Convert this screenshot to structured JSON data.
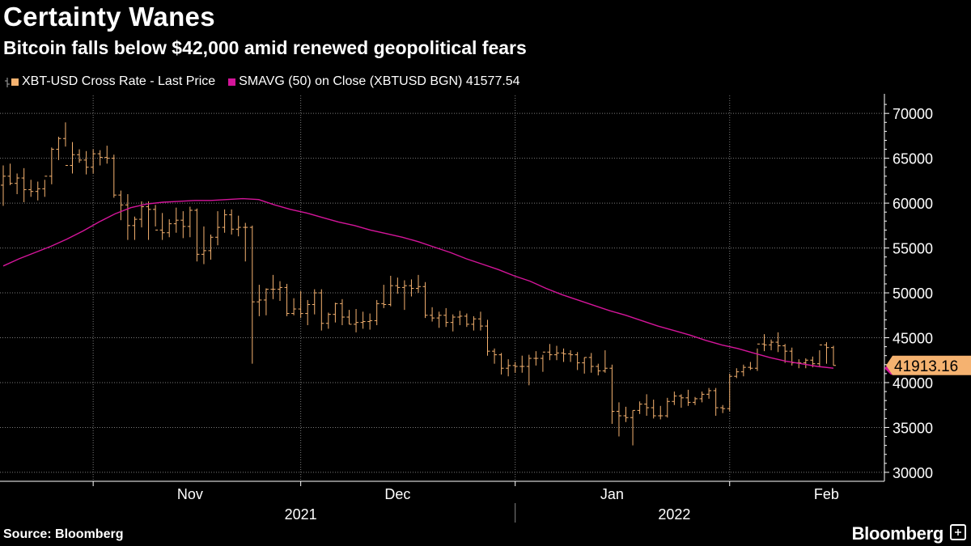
{
  "title": "Certainty Wanes",
  "subtitle": "Bitcoin falls below $42,000 amid renewed geopolitical fears",
  "source": "Source: Bloomberg",
  "brand": "Bloomberg",
  "colors": {
    "price": "#f5b270",
    "sma": "#d4159a",
    "grid": "#7a7a7a",
    "background": "#000000"
  },
  "chart_data": {
    "type": "line",
    "ylim": [
      29000,
      72000
    ],
    "yticks": [
      30000,
      35000,
      40000,
      45000,
      50000,
      55000,
      60000,
      65000,
      70000
    ],
    "ytick_labels": [
      "30000",
      "35000",
      "40000",
      "45000",
      "50000",
      "55000",
      "60000",
      "65000",
      "70000"
    ],
    "xlabels": [
      {
        "label": "Nov",
        "date": "2021-11-15"
      },
      {
        "label": "Dec",
        "date": "2021-12-15"
      },
      {
        "label": "Jan",
        "date": "2022-01-15"
      },
      {
        "label": "Feb",
        "date": "2022-02-15"
      }
    ],
    "year_labels": [
      {
        "label": "2021",
        "date": "2021-12-01"
      },
      {
        "label": "2022",
        "date": "2022-01-24"
      }
    ],
    "grid": true,
    "last_value_label": "41913.16",
    "series": [
      {
        "name": "XBT-USD Cross Rate - Last Price",
        "style": "ohlc",
        "start_date": "2021-10-19",
        "values": [
          [
            62000,
            64200,
            59700,
            63000
          ],
          [
            63000,
            64400,
            62000,
            62200
          ],
          [
            62200,
            63300,
            61000,
            62800
          ],
          [
            62800,
            63900,
            60100,
            61500
          ],
          [
            61500,
            62600,
            60700,
            61300
          ],
          [
            61300,
            62400,
            60300,
            61600
          ],
          [
            61600,
            62600,
            60700,
            63000
          ],
          [
            63000,
            66200,
            62100,
            66000
          ],
          [
            66000,
            67400,
            64800,
            67200
          ],
          [
            67200,
            69000,
            66300,
            64200
          ],
          [
            64200,
            66800,
            63300,
            65400
          ],
          [
            65400,
            66000,
            64500,
            64800
          ],
          [
            64800,
            65800,
            63200,
            64000
          ],
          [
            64000,
            66000,
            63300,
            65500
          ],
          [
            65500,
            65900,
            64200,
            65100
          ],
          [
            65100,
            66400,
            64400,
            65000
          ],
          [
            65000,
            65400,
            60600,
            60900
          ],
          [
            60900,
            61400,
            58100,
            59800
          ],
          [
            59800,
            61000,
            55900,
            57500
          ],
          [
            57500,
            58500,
            55900,
            58200
          ],
          [
            58200,
            60200,
            57300,
            59600
          ],
          [
            59600,
            60200,
            55900,
            59300
          ],
          [
            59300,
            59800,
            57400,
            57000
          ],
          [
            57000,
            58900,
            55900,
            56700
          ],
          [
            56700,
            58200,
            56200,
            57700
          ],
          [
            57700,
            59500,
            56700,
            58100
          ],
          [
            58100,
            59100,
            56100,
            57400
          ],
          [
            57400,
            59600,
            56200,
            59200
          ],
          [
            59200,
            59400,
            53500,
            54300
          ],
          [
            54300,
            57400,
            53200,
            54700
          ],
          [
            54700,
            56500,
            53700,
            56200
          ],
          [
            56200,
            59100,
            55300,
            57300
          ],
          [
            57300,
            59300,
            56700,
            58700
          ],
          [
            58700,
            59300,
            56500,
            57100
          ],
          [
            57100,
            58600,
            56300,
            57300
          ],
          [
            57300,
            57800,
            53500,
            57300
          ],
          [
            57300,
            57500,
            42100,
            49000
          ],
          [
            49000,
            50900,
            47400,
            49200
          ],
          [
            49200,
            50500,
            47500,
            50400
          ],
          [
            50400,
            52000,
            49300,
            50400
          ],
          [
            50400,
            51300,
            49100,
            50600
          ],
          [
            50600,
            51000,
            47400,
            47700
          ],
          [
            47700,
            49400,
            47500,
            48200
          ],
          [
            48200,
            50200,
            47200,
            47700
          ],
          [
            47700,
            49200,
            46400,
            48700
          ],
          [
            48700,
            50400,
            47600,
            50000
          ],
          [
            50000,
            50400,
            45800,
            46600
          ],
          [
            46600,
            47800,
            46000,
            47600
          ],
          [
            47600,
            48900,
            46700,
            48800
          ],
          [
            48800,
            49300,
            46400,
            47300
          ],
          [
            47300,
            48100,
            46500,
            46500
          ],
          [
            46500,
            48200,
            45600,
            46700
          ],
          [
            46700,
            47900,
            46000,
            46800
          ],
          [
            46800,
            47700,
            45900,
            46900
          ],
          [
            46900,
            49200,
            46400,
            48800
          ],
          [
            48800,
            50900,
            48300,
            48700
          ],
          [
            48700,
            51900,
            48500,
            50800
          ],
          [
            50800,
            51700,
            49900,
            50600
          ],
          [
            50600,
            51400,
            48100,
            50800
          ],
          [
            50800,
            51500,
            49600,
            50500
          ],
          [
            50500,
            52000,
            50000,
            50700
          ],
          [
            50700,
            51200,
            47200,
            47500
          ],
          [
            47500,
            48400,
            46800,
            47200
          ],
          [
            47200,
            47900,
            46100,
            47500
          ],
          [
            47500,
            48300,
            46200,
            46700
          ],
          [
            46700,
            47600,
            45700,
            47300
          ],
          [
            47300,
            48000,
            46400,
            47400
          ],
          [
            47400,
            47700,
            46200,
            46500
          ],
          [
            46500,
            47400,
            45800,
            47100
          ],
          [
            47100,
            47900,
            45800,
            46300
          ],
          [
            46300,
            47000,
            43000,
            43500
          ],
          [
            43500,
            43800,
            42100,
            43100
          ],
          [
            43100,
            43300,
            40900,
            41600
          ],
          [
            41600,
            42600,
            40700,
            41900
          ],
          [
            41900,
            42300,
            41100,
            41800
          ],
          [
            41800,
            43000,
            41100,
            41800
          ],
          [
            41800,
            43100,
            39700,
            42700
          ],
          [
            42700,
            43500,
            41900,
            42700
          ],
          [
            42700,
            43100,
            41200,
            43400
          ],
          [
            43400,
            44300,
            42500,
            43100
          ],
          [
            43100,
            44100,
            42500,
            43300
          ],
          [
            43300,
            43800,
            42300,
            43200
          ],
          [
            43200,
            43600,
            42300,
            43100
          ],
          [
            43100,
            43400,
            41400,
            42200
          ],
          [
            42200,
            42800,
            41000,
            42800
          ],
          [
            42800,
            43300,
            41100,
            41800
          ],
          [
            41800,
            42100,
            40800,
            41300
          ],
          [
            41300,
            43600,
            41100,
            41600
          ],
          [
            41600,
            42000,
            35400,
            36800
          ],
          [
            36800,
            37800,
            34000,
            36300
          ],
          [
            36300,
            37300,
            35600,
            36100
          ],
          [
            36100,
            36900,
            33000,
            36900
          ],
          [
            36900,
            37900,
            36500,
            37600
          ],
          [
            37600,
            38700,
            36300,
            37200
          ],
          [
            37200,
            38100,
            36000,
            36300
          ],
          [
            36300,
            37400,
            35900,
            36300
          ],
          [
            36300,
            38300,
            36100,
            37900
          ],
          [
            37900,
            39000,
            37500,
            38500
          ],
          [
            38500,
            38700,
            37200,
            38300
          ],
          [
            38300,
            39200,
            37400,
            37800
          ],
          [
            37800,
            38400,
            37500,
            38200
          ],
          [
            38200,
            39000,
            37800,
            38700
          ],
          [
            38700,
            39400,
            38200,
            39100
          ],
          [
            39100,
            39400,
            36300,
            37200
          ],
          [
            37200,
            37500,
            36600,
            37100
          ],
          [
            37100,
            41000,
            36800,
            40700
          ],
          [
            40700,
            41600,
            40500,
            41200
          ],
          [
            41200,
            42000,
            40700,
            41700
          ],
          [
            41700,
            42300,
            41400,
            41600
          ],
          [
            41600,
            43800,
            41300,
            44300
          ],
          [
            44300,
            45400,
            43500,
            44200
          ],
          [
            44200,
            44800,
            43600,
            44500
          ],
          [
            44500,
            45600,
            43400,
            44100
          ],
          [
            44100,
            44300,
            42200,
            43500
          ],
          [
            43500,
            43900,
            41900,
            42200
          ],
          [
            42200,
            42600,
            41600,
            42200
          ],
          [
            42200,
            42700,
            41600,
            42500
          ],
          [
            42500,
            42900,
            41700,
            42100
          ],
          [
            42100,
            43600,
            41700,
            44200
          ],
          [
            44200,
            44500,
            42100,
            43900
          ],
          [
            43900,
            44100,
            41900,
            41913
          ]
        ]
      },
      {
        "name": "SMAVG (50)  on Close (XBTUSD BGN)",
        "style": "line",
        "last": "41577.54",
        "start_date": "2021-10-19",
        "values": [
          53000,
          53800,
          54500,
          55200,
          56000,
          56900,
          57900,
          58800,
          59500,
          59900,
          60100,
          60200,
          60300,
          60300,
          60400,
          60500,
          60400,
          59800,
          59300,
          58900,
          58400,
          57900,
          57500,
          57000,
          56600,
          56200,
          55700,
          55100,
          54500,
          53800,
          53200,
          52600,
          51900,
          51300,
          50500,
          49800,
          49200,
          48600,
          48000,
          47500,
          46900,
          46300,
          45800,
          45300,
          44700,
          44200,
          43800,
          43300,
          42800,
          42400,
          42100,
          41800,
          41600
        ]
      }
    ]
  }
}
